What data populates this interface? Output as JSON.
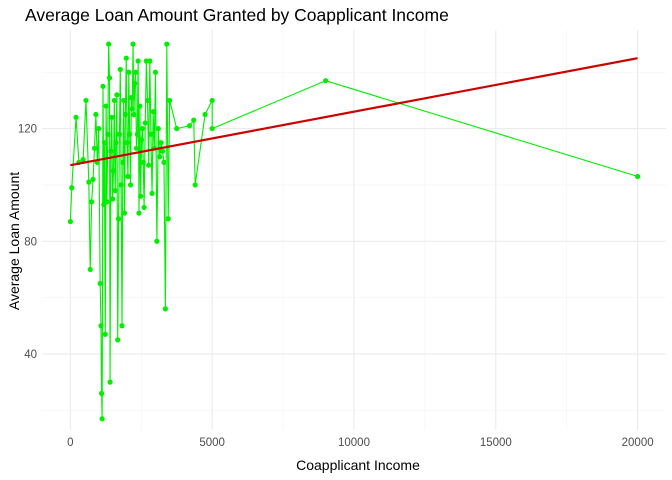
{
  "chart_data": {
    "type": "line",
    "title": "Average Loan Amount Granted by Coapplicant Income",
    "xlabel": "Coapplicant Income",
    "ylabel": "Average Loan Amount",
    "xlim": [
      -1000,
      21000
    ],
    "ylim": [
      13,
      155
    ],
    "x_ticks": [
      0,
      5000,
      10000,
      15000,
      20000
    ],
    "x_tick_labels": [
      "0",
      "5000",
      "10000",
      "15000",
      "20000"
    ],
    "y_ticks": [
      40,
      80,
      120
    ],
    "y_tick_labels": [
      "40",
      "80",
      "120"
    ],
    "grid": true,
    "legend": "none",
    "colors": {
      "line": "#00ee00",
      "points": "#00ee00",
      "trend": "#cc0000"
    },
    "series": [
      {
        "kind": "line+points",
        "points": [
          [
            0,
            87
          ],
          [
            50,
            99
          ],
          [
            200,
            124
          ],
          [
            300,
            108
          ],
          [
            450,
            109
          ],
          [
            550,
            130
          ],
          [
            650,
            101
          ],
          [
            700,
            70
          ],
          [
            750,
            94
          ],
          [
            800,
            102
          ],
          [
            850,
            113
          ],
          [
            900,
            125
          ],
          [
            950,
            108
          ],
          [
            1000,
            120
          ],
          [
            1050,
            65
          ],
          [
            1080,
            50
          ],
          [
            1100,
            26
          ],
          [
            1120,
            17
          ],
          [
            1150,
            135
          ],
          [
            1180,
            93
          ],
          [
            1200,
            115
          ],
          [
            1230,
            47
          ],
          [
            1260,
            128
          ],
          [
            1290,
            94
          ],
          [
            1320,
            118
          ],
          [
            1350,
            150
          ],
          [
            1380,
            138
          ],
          [
            1400,
            30
          ],
          [
            1430,
            112
          ],
          [
            1460,
            124
          ],
          [
            1490,
            95
          ],
          [
            1520,
            105
          ],
          [
            1550,
            130
          ],
          [
            1580,
            98
          ],
          [
            1610,
            115
          ],
          [
            1640,
            132
          ],
          [
            1670,
            45
          ],
          [
            1700,
            88
          ],
          [
            1730,
            118
          ],
          [
            1760,
            141
          ],
          [
            1790,
            100
          ],
          [
            1820,
            50
          ],
          [
            1850,
            108
          ],
          [
            1880,
            130
          ],
          [
            1910,
            90
          ],
          [
            1940,
            125
          ],
          [
            1970,
            145
          ],
          [
            2000,
            115
          ],
          [
            2030,
            103
          ],
          [
            2060,
            140
          ],
          [
            2090,
            118
          ],
          [
            2120,
            100
          ],
          [
            2150,
            131
          ],
          [
            2180,
            127
          ],
          [
            2210,
            150
          ],
          [
            2240,
            125
          ],
          [
            2270,
            136
          ],
          [
            2300,
            140
          ],
          [
            2330,
            113
          ],
          [
            2360,
            118
          ],
          [
            2390,
            144
          ],
          [
            2420,
            90
          ],
          [
            2450,
            128
          ],
          [
            2480,
            96
          ],
          [
            2510,
            116
          ],
          [
            2540,
            120
          ],
          [
            2570,
            108
          ],
          [
            2600,
            92
          ],
          [
            2640,
            122
          ],
          [
            2680,
            144
          ],
          [
            2720,
            130
          ],
          [
            2760,
            107
          ],
          [
            2800,
            144
          ],
          [
            2840,
            118
          ],
          [
            2880,
            97
          ],
          [
            2920,
            126
          ],
          [
            2960,
            113
          ],
          [
            3000,
            140
          ],
          [
            3050,
            80
          ],
          [
            3100,
            120
          ],
          [
            3150,
            110
          ],
          [
            3200,
            115
          ],
          [
            3250,
            112
          ],
          [
            3300,
            108
          ],
          [
            3350,
            56
          ],
          [
            3400,
            150
          ],
          [
            3450,
            88
          ],
          [
            3500,
            130
          ],
          [
            3750,
            120
          ],
          [
            4200,
            121
          ],
          [
            4350,
            123
          ],
          [
            4400,
            100
          ],
          [
            4750,
            125
          ],
          [
            5000,
            130
          ],
          [
            5000,
            120
          ],
          [
            9000,
            137
          ],
          [
            20000,
            103
          ]
        ]
      },
      {
        "kind": "trend",
        "points": [
          [
            0,
            107
          ],
          [
            20000,
            145
          ]
        ]
      }
    ]
  }
}
